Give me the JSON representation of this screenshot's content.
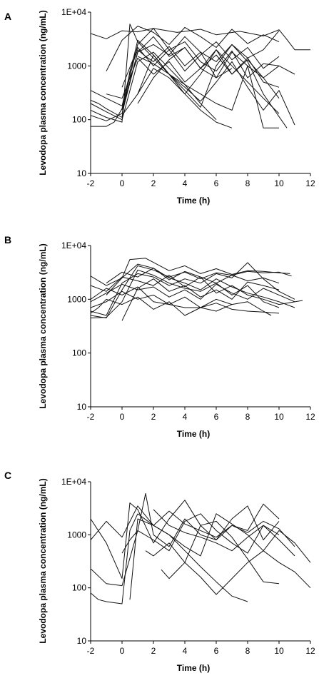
{
  "figure": {
    "panels": [
      "A",
      "B",
      "C"
    ]
  },
  "chart_data": [
    {
      "type": "line",
      "panel": "A",
      "xlabel": "Time (h)",
      "ylabel": "Levodopa plasma concentration (ng/mL)",
      "yscale": "log",
      "xlim": [
        -2,
        12
      ],
      "ylim": [
        10,
        10000
      ],
      "xticks": [
        "-2",
        "0",
        "2",
        "4",
        "6",
        "8",
        "10",
        "12"
      ],
      "yticks": [
        "10",
        "100",
        "1000",
        "1E+04"
      ],
      "grid": false,
      "series": [
        {
          "x": [
            -2,
            -1,
            0,
            1,
            2,
            3.5,
            5,
            6,
            7.5,
            9,
            10,
            10.5,
            11,
            12
          ],
          "y": [
            4000,
            3200,
            4500,
            4300,
            5000,
            4200,
            4800,
            3800,
            4400,
            3600,
            4700,
            3100,
            2000,
            2000
          ]
        },
        {
          "x": [
            -2,
            -1,
            0,
            1,
            2,
            3,
            4,
            5,
            6,
            7,
            8,
            9,
            10
          ],
          "y": [
            120,
            95,
            130,
            1800,
            3500,
            1500,
            2200,
            900,
            1600,
            700,
            1400,
            500,
            400
          ]
        },
        {
          "x": [
            -2,
            -1,
            -0.5,
            0,
            1,
            2,
            3,
            4,
            5,
            6,
            7,
            8,
            9,
            10
          ],
          "y": [
            75,
            75,
            90,
            160,
            2500,
            5000,
            2000,
            2800,
            1200,
            800,
            1900,
            600,
            1100,
            1000
          ]
        },
        {
          "x": [
            -2,
            -1.5,
            -1,
            0,
            0.5,
            1,
            1.5,
            2,
            3,
            4,
            5,
            6,
            7
          ],
          "y": [
            230,
            200,
            160,
            110,
            800,
            2000,
            1500,
            1200,
            2300,
            1000,
            1800,
            600,
            900
          ]
        },
        {
          "x": [
            -2,
            -1,
            0,
            0.5,
            1,
            2,
            3,
            4,
            5,
            6,
            7,
            8,
            9,
            10.5
          ],
          "y": [
            150,
            110,
            90,
            6000,
            2800,
            1400,
            700,
            350,
            170,
            1000,
            2500,
            1200,
            300,
            70
          ]
        },
        {
          "x": [
            -2,
            -1,
            0,
            1,
            2,
            3,
            4,
            5,
            6
          ],
          "y": [
            200,
            140,
            100,
            1200,
            1800,
            900,
            450,
            200,
            100
          ]
        },
        {
          "x": [
            -2,
            -1,
            0,
            1,
            2,
            3,
            4,
            5,
            6,
            7
          ],
          "y": [
            350,
            250,
            180,
            3000,
            1600,
            700,
            300,
            150,
            90,
            70
          ]
        },
        {
          "x": [
            0,
            1,
            2,
            3,
            4,
            5,
            6,
            7,
            8,
            9,
            10
          ],
          "y": [
            150,
            1800,
            2500,
            1600,
            3500,
            1800,
            1200,
            2500,
            1400,
            2000,
            4500
          ]
        },
        {
          "x": [
            -1,
            0,
            1,
            2,
            3,
            4,
            5,
            6,
            7,
            8,
            9,
            10
          ],
          "y": [
            800,
            3000,
            5500,
            4200,
            2500,
            5200,
            3500,
            2200,
            4800,
            2600,
            3800,
            2800
          ]
        },
        {
          "x": [
            0,
            1,
            2,
            3,
            4,
            5,
            6,
            7,
            8,
            9,
            10
          ],
          "y": [
            400,
            2200,
            1000,
            2000,
            800,
            1600,
            2800,
            1300,
            2200,
            900,
            1500
          ]
        },
        {
          "x": [
            -1,
            0,
            1,
            2,
            3,
            4,
            5,
            6,
            7,
            8,
            9,
            10,
            11
          ],
          "y": [
            300,
            250,
            1400,
            700,
            1200,
            500,
            900,
            2000,
            700,
            1300,
            600,
            1000,
            700
          ]
        },
        {
          "x": [
            1,
            2,
            3,
            4,
            5,
            6,
            7,
            8,
            9,
            10
          ],
          "y": [
            300,
            900,
            600,
            300,
            700,
            2000,
            1000,
            500,
            250,
            130
          ]
        },
        {
          "x": [
            1,
            2,
            3,
            4,
            5,
            6,
            7,
            8,
            9,
            10
          ],
          "y": [
            200,
            600,
            1300,
            2200,
            900,
            600,
            1800,
            1000,
            600,
            250
          ]
        },
        {
          "x": [
            0,
            1,
            2,
            3,
            4,
            5,
            6,
            7,
            8,
            9,
            10,
            11
          ],
          "y": [
            120,
            300,
            1600,
            700,
            400,
            220,
            500,
            1200,
            400,
            150,
            350,
            80
          ]
        },
        {
          "x": [
            1,
            2,
            3,
            4,
            5,
            6,
            7,
            8,
            9,
            10
          ],
          "y": [
            1500,
            1100,
            700,
            450,
            300,
            200,
            150,
            1000,
            70,
            70
          ]
        }
      ]
    },
    {
      "type": "line",
      "panel": "B",
      "xlabel": "Time (h)",
      "ylabel": "Levodopa plasma concentration (ng/mL)",
      "yscale": "log",
      "xlim": [
        -2,
        12
      ],
      "ylim": [
        10,
        10000
      ],
      "xticks": [
        "-2",
        "0",
        "2",
        "4",
        "6",
        "8",
        "10",
        "12"
      ],
      "yticks": [
        "10",
        "100",
        "1000",
        "1E+04"
      ],
      "grid": false,
      "series": [
        {
          "x": [
            -2,
            -1,
            0,
            0.5,
            1.5,
            3,
            4,
            5,
            6,
            7,
            8,
            9,
            10,
            10.7
          ],
          "y": [
            2700,
            1800,
            2500,
            5500,
            5800,
            3400,
            4200,
            3000,
            3700,
            2900,
            3400,
            3300,
            3100,
            3000
          ]
        },
        {
          "x": [
            -2,
            -1,
            0,
            1,
            2,
            3,
            4,
            5,
            6,
            7,
            8,
            9,
            10,
            10.8
          ],
          "y": [
            500,
            450,
            1500,
            4200,
            3500,
            2600,
            3200,
            2400,
            3100,
            2800,
            3300,
            3100,
            3200,
            2700
          ]
        },
        {
          "x": [
            -2,
            -1,
            0,
            1,
            2,
            3,
            4,
            5,
            6,
            7,
            8,
            9,
            10,
            11
          ],
          "y": [
            600,
            500,
            2000,
            3000,
            2600,
            1800,
            2400,
            2000,
            3000,
            2500,
            4800,
            2400,
            1400,
            1000
          ]
        },
        {
          "x": [
            -2,
            -1,
            0,
            1,
            2,
            3,
            4,
            5,
            6,
            7,
            8,
            9,
            10
          ],
          "y": [
            450,
            460,
            900,
            3500,
            2800,
            2000,
            1600,
            1400,
            2000,
            1200,
            1800,
            900,
            700
          ]
        },
        {
          "x": [
            -2,
            -1,
            0,
            1,
            2,
            3,
            4,
            5,
            6,
            7,
            8,
            9,
            10,
            11.5
          ],
          "y": [
            1800,
            1400,
            2600,
            2200,
            1800,
            2800,
            1700,
            2600,
            1300,
            1800,
            1200,
            1000,
            800,
            950
          ]
        },
        {
          "x": [
            -2,
            -1,
            0,
            1,
            2,
            3,
            4,
            5,
            6,
            7,
            8,
            9,
            10,
            11
          ],
          "y": [
            900,
            1300,
            1900,
            1500,
            1700,
            1100,
            1500,
            1000,
            1900,
            1300,
            1000,
            1600,
            1200,
            900
          ]
        },
        {
          "x": [
            -2,
            -1,
            0,
            1,
            2,
            3,
            4,
            5,
            6,
            7,
            8,
            9,
            9.5
          ],
          "y": [
            700,
            900,
            1400,
            1000,
            1200,
            800,
            1100,
            700,
            1000,
            800,
            900,
            600,
            500
          ]
        },
        {
          "x": [
            -2,
            -1,
            0,
            1,
            2,
            3,
            4,
            5,
            6,
            7,
            8,
            9,
            10
          ],
          "y": [
            1000,
            1600,
            1200,
            1700,
            900,
            800,
            700,
            700,
            850,
            650,
            600,
            580,
            550
          ]
        },
        {
          "x": [
            -2,
            -1.5,
            -1,
            0,
            1,
            2,
            3,
            4,
            5,
            6,
            7
          ],
          "y": [
            550,
            700,
            1000,
            800,
            1100,
            650,
            900,
            500,
            700,
            600,
            800
          ]
        },
        {
          "x": [
            -1,
            0,
            1,
            2,
            3,
            4,
            5,
            6,
            7,
            8,
            9,
            10
          ],
          "y": [
            2000,
            3200,
            2600,
            3800,
            2300,
            3300,
            2600,
            2000,
            2800,
            2200,
            2500,
            2000
          ]
        },
        {
          "x": [
            -1,
            0,
            1,
            2,
            3,
            4,
            5,
            6,
            7,
            8,
            9,
            10,
            11
          ],
          "y": [
            1200,
            2500,
            4500,
            3800,
            2500,
            2000,
            1500,
            2400,
            1700,
            1300,
            1100,
            900,
            700
          ]
        },
        {
          "x": [
            0,
            1,
            2,
            3,
            4,
            5,
            6,
            7,
            8,
            9,
            10
          ],
          "y": [
            400,
            1600,
            2400,
            1400,
            1800,
            1100,
            1500,
            1000,
            2100,
            1800,
            1500
          ]
        }
      ]
    },
    {
      "type": "line",
      "panel": "C",
      "xlabel": "Time (h)",
      "ylabel": "Levodopa plasma concentration (ng/mL)",
      "yscale": "log",
      "xlim": [
        -2,
        12
      ],
      "ylim": [
        10,
        10000
      ],
      "xticks": [
        "-2",
        "0",
        "2",
        "4",
        "6",
        "8",
        "10",
        "12"
      ],
      "yticks": [
        "10",
        "100",
        "1000",
        "1E+04"
      ],
      "grid": false,
      "series": [
        {
          "x": [
            -2,
            -1,
            0,
            1,
            2,
            3,
            4,
            5,
            6,
            7,
            8,
            9,
            10,
            11
          ],
          "y": [
            800,
            1800,
            900,
            3500,
            1500,
            2800,
            1600,
            1200,
            900,
            1500,
            1100,
            1800,
            1300,
            600
          ]
        },
        {
          "x": [
            -2,
            -1,
            0,
            0.5,
            1,
            2,
            3,
            4,
            5,
            6,
            7,
            8,
            9,
            10
          ],
          "y": [
            2000,
            700,
            150,
            4000,
            3000,
            700,
            2000,
            4500,
            1500,
            800,
            2000,
            3500,
            800,
            1800
          ]
        },
        {
          "x": [
            -2,
            -1,
            0,
            1,
            1.5,
            2,
            3,
            4,
            5,
            6,
            7,
            8,
            9,
            10
          ],
          "y": [
            230,
            120,
            110,
            1200,
            6000,
            1000,
            600,
            2000,
            1000,
            800,
            1500,
            1200,
            3800,
            2000
          ]
        },
        {
          "x": [
            -2,
            -1.5,
            -1,
            0,
            0.5,
            1
          ],
          "y": [
            80,
            60,
            55,
            50,
            1200,
            2500
          ]
        },
        {
          "x": [
            0.5,
            1,
            2,
            3,
            4,
            5,
            6,
            7,
            8
          ],
          "y": [
            60,
            2000,
            1500,
            1000,
            500,
            250,
            130,
            70,
            55
          ]
        },
        {
          "x": [
            2.5,
            3,
            4,
            5,
            6,
            7,
            8,
            9,
            10
          ],
          "y": [
            220,
            150,
            300,
            1500,
            1800,
            900,
            350,
            130,
            120
          ]
        },
        {
          "x": [
            1,
            2,
            3,
            4,
            5,
            6,
            7,
            8,
            9,
            10,
            11,
            12
          ],
          "y": [
            2500,
            1500,
            1000,
            600,
            400,
            2500,
            1600,
            1000,
            500,
            1200,
            700,
            300
          ]
        },
        {
          "x": [
            1.5,
            2,
            3,
            4,
            5,
            6,
            7,
            8,
            9,
            10,
            11,
            12
          ],
          "y": [
            500,
            400,
            700,
            300,
            160,
            75,
            150,
            300,
            500,
            300,
            200,
            100
          ]
        },
        {
          "x": [
            0,
            0.5,
            1,
            2,
            3,
            4,
            5,
            6,
            7,
            8,
            9,
            10,
            11
          ],
          "y": [
            450,
            800,
            1200,
            800,
            500,
            1800,
            2500,
            1200,
            700,
            450,
            1500,
            800,
            400
          ]
        },
        {
          "x": [
            2,
            3,
            4,
            5,
            6,
            7,
            8,
            9,
            10
          ],
          "y": [
            3000,
            1500,
            1100,
            900,
            700,
            500,
            900,
            1500,
            1000
          ]
        }
      ]
    }
  ]
}
